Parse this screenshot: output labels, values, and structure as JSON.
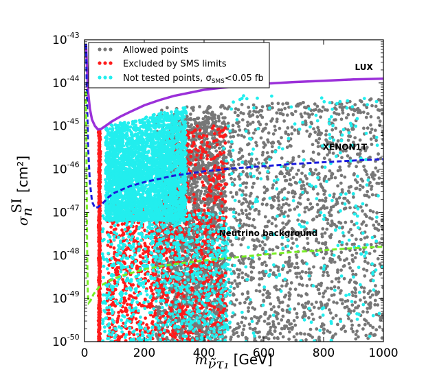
{
  "chart_data": {
    "type": "scatter",
    "xlabel": "m",
    "xlabel_sub": "ν̃τ₁",
    "xlabel_unit": "[GeV]",
    "ylabel": "σ",
    "ylabel_sub": "n",
    "ylabel_sup": "SI",
    "ylabel_unit": "[cm²]",
    "xlim": [
      0,
      1000
    ],
    "ylim": [
      1e-50,
      1e-43
    ],
    "yscale": "log",
    "x_ticks": [
      "0",
      "200",
      "400",
      "600",
      "800",
      "1000"
    ],
    "x_tick_values": [
      0,
      200,
      400,
      600,
      800,
      1000
    ],
    "y_ticks": [
      {
        "base": "10",
        "exp": "-43",
        "value": -43
      },
      {
        "base": "10",
        "exp": "-44",
        "value": -44
      },
      {
        "base": "10",
        "exp": "-45",
        "value": -45
      },
      {
        "base": "10",
        "exp": "-46",
        "value": -46
      },
      {
        "base": "10",
        "exp": "-47",
        "value": -47
      },
      {
        "base": "10",
        "exp": "-48",
        "value": -48
      },
      {
        "base": "10",
        "exp": "-49",
        "value": -49
      },
      {
        "base": "10",
        "exp": "-50",
        "value": -50
      }
    ],
    "legend": {
      "placement": "top-left",
      "entries": [
        {
          "label": "Allowed points",
          "color": "#777777"
        },
        {
          "label": "Excluded by SMS limits",
          "color": "#ff1a1a"
        },
        {
          "label": "Not tested points, σ",
          "label_sub": "SMS",
          "label_tail": "<0.05 fb",
          "color": "#22eeee"
        }
      ]
    },
    "series": [
      {
        "name": "Allowed points",
        "color": "#777777"
      },
      {
        "name": "Excluded by SMS limits",
        "color": "#ff1a1a"
      },
      {
        "name": "Not tested points",
        "color": "#22eeee"
      }
    ],
    "curves": [
      {
        "name": "LUX",
        "color": "#9b30d9",
        "style": "solid",
        "points": [
          [
            5,
            -43.1
          ],
          [
            8,
            -43.6
          ],
          [
            12,
            -44.2
          ],
          [
            18,
            -44.6
          ],
          [
            25,
            -44.85
          ],
          [
            35,
            -45.0
          ],
          [
            45,
            -45.08
          ],
          [
            55,
            -45.07
          ],
          [
            70,
            -45.0
          ],
          [
            90,
            -44.9
          ],
          [
            120,
            -44.78
          ],
          [
            150,
            -44.68
          ],
          [
            200,
            -44.52
          ],
          [
            250,
            -44.4
          ],
          [
            300,
            -44.3
          ],
          [
            400,
            -44.16
          ],
          [
            500,
            -44.08
          ],
          [
            600,
            -44.02
          ],
          [
            700,
            -43.98
          ],
          [
            800,
            -43.95
          ],
          [
            900,
            -43.92
          ],
          [
            1000,
            -43.9
          ]
        ]
      },
      {
        "name": "XENON1T",
        "color": "#1a1adc",
        "style": "dashed",
        "points": [
          [
            5,
            -43.1
          ],
          [
            8,
            -44.3
          ],
          [
            12,
            -45.5
          ],
          [
            18,
            -46.3
          ],
          [
            25,
            -46.75
          ],
          [
            35,
            -46.9
          ],
          [
            45,
            -46.88
          ],
          [
            60,
            -46.8
          ],
          [
            80,
            -46.65
          ],
          [
            100,
            -46.55
          ],
          [
            150,
            -46.4
          ],
          [
            200,
            -46.3
          ],
          [
            300,
            -46.15
          ],
          [
            400,
            -46.05
          ],
          [
            500,
            -45.98
          ],
          [
            600,
            -45.93
          ],
          [
            700,
            -45.88
          ],
          [
            800,
            -45.84
          ],
          [
            900,
            -45.8
          ],
          [
            1000,
            -45.77
          ]
        ]
      },
      {
        "name": "Neutrino background",
        "color": "#77ee22",
        "style": "dashed",
        "points": [
          [
            5,
            -44.2
          ],
          [
            7,
            -46.0
          ],
          [
            9,
            -48.0
          ],
          [
            11,
            -48.9
          ],
          [
            14,
            -49.1
          ],
          [
            20,
            -49.05
          ],
          [
            30,
            -48.9
          ],
          [
            50,
            -48.72
          ],
          [
            80,
            -48.6
          ],
          [
            120,
            -48.48
          ],
          [
            200,
            -48.32
          ],
          [
            300,
            -48.2
          ],
          [
            400,
            -48.12
          ],
          [
            500,
            -48.05
          ],
          [
            600,
            -47.98
          ],
          [
            700,
            -47.92
          ],
          [
            800,
            -47.88
          ],
          [
            900,
            -47.83
          ],
          [
            1000,
            -47.8
          ]
        ]
      }
    ],
    "curve_labels": [
      {
        "text": "LUX",
        "x": 965,
        "y": -43.7
      },
      {
        "text": "XENON1T",
        "x": 945,
        "y": -45.55
      },
      {
        "text": "Neutrino background",
        "x": 780,
        "y": -47.55
      }
    ]
  }
}
